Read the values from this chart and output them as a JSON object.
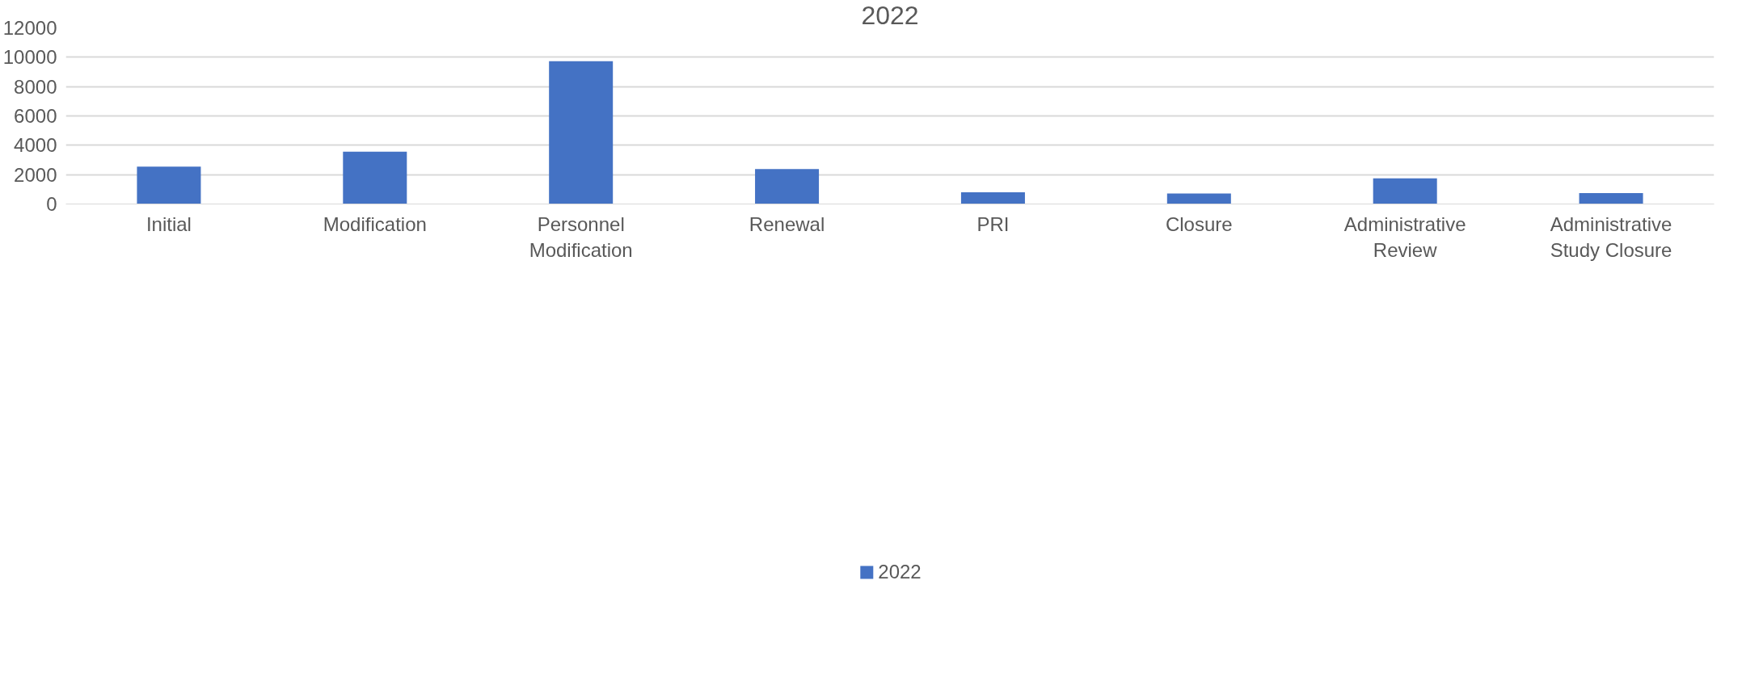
{
  "chart_data": {
    "type": "bar",
    "title": "2022",
    "categories": [
      "Initial",
      "Modification",
      "Personnel Modification",
      "Renewal",
      "PRI",
      "Closure",
      "Administrative Review",
      "Administrative Study Closure"
    ],
    "series": [
      {
        "name": "2022",
        "color": "#4472c4",
        "values": [
          2550,
          3560,
          9730,
          2380,
          800,
          710,
          1750,
          740
        ]
      }
    ],
    "ylim": [
      0,
      12000
    ],
    "yticks": [
      0,
      2000,
      4000,
      6000,
      8000,
      10000,
      12000
    ],
    "grid": "y",
    "legend": "bottom"
  }
}
